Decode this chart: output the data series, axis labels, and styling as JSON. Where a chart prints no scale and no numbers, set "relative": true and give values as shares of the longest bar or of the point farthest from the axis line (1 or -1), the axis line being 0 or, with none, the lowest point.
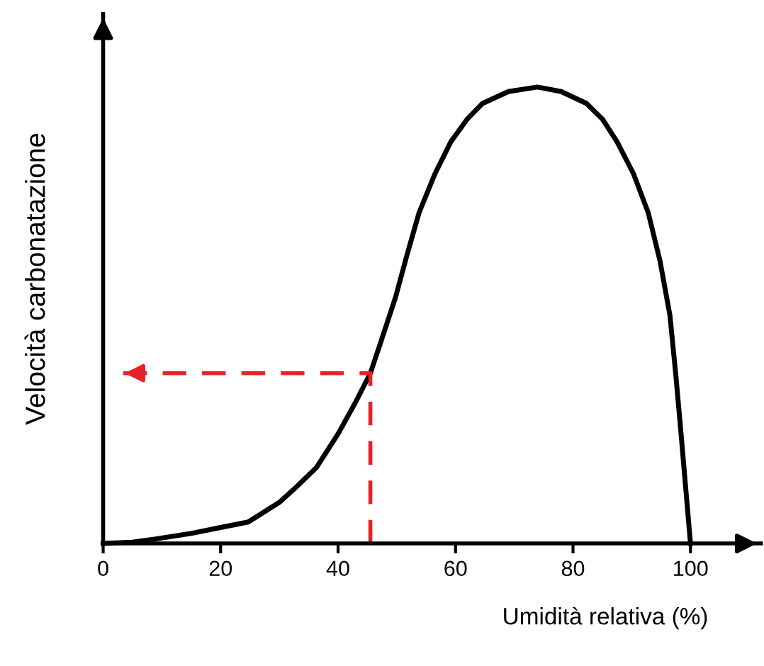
{
  "chart_data": {
    "type": "line",
    "relative": true,
    "xlabel": "Umidità relativa (%)",
    "ylabel": "Velocità carbonatazione",
    "xlim": [
      0,
      112
    ],
    "xticks": [
      0,
      20,
      40,
      60,
      80,
      100
    ],
    "grid": false,
    "marker": "none",
    "series": [
      {
        "color": "#000000",
        "line_style": "solid",
        "x": [
          0,
          5,
          9,
          15,
          20,
          24.7,
          30,
          33,
          36.3,
          40,
          43,
          45.5,
          47.5,
          49.8,
          51.8,
          53.8,
          56.5,
          59.2,
          62,
          64.6,
          69,
          73.9,
          78,
          82.3,
          85,
          87.5,
          90.3,
          92.8,
          94.8,
          96.5,
          97.5,
          98.4,
          99.2,
          100
        ],
        "values": [
          0,
          0.003,
          0.01,
          0.022,
          0.035,
          0.047,
          0.09,
          0.125,
          0.166,
          0.24,
          0.31,
          0.373,
          0.45,
          0.54,
          0.635,
          0.725,
          0.81,
          0.88,
          0.93,
          0.964,
          0.99,
          1.0,
          0.99,
          0.964,
          0.93,
          0.88,
          0.81,
          0.725,
          0.62,
          0.5,
          0.37,
          0.24,
          0.12,
          0
        ]
      },
      {
        "color": "#e8202a",
        "line_style": "dashed",
        "x": [
          45.5,
          45.5,
          3
        ],
        "values": [
          0,
          0.373,
          0.373
        ]
      }
    ]
  }
}
